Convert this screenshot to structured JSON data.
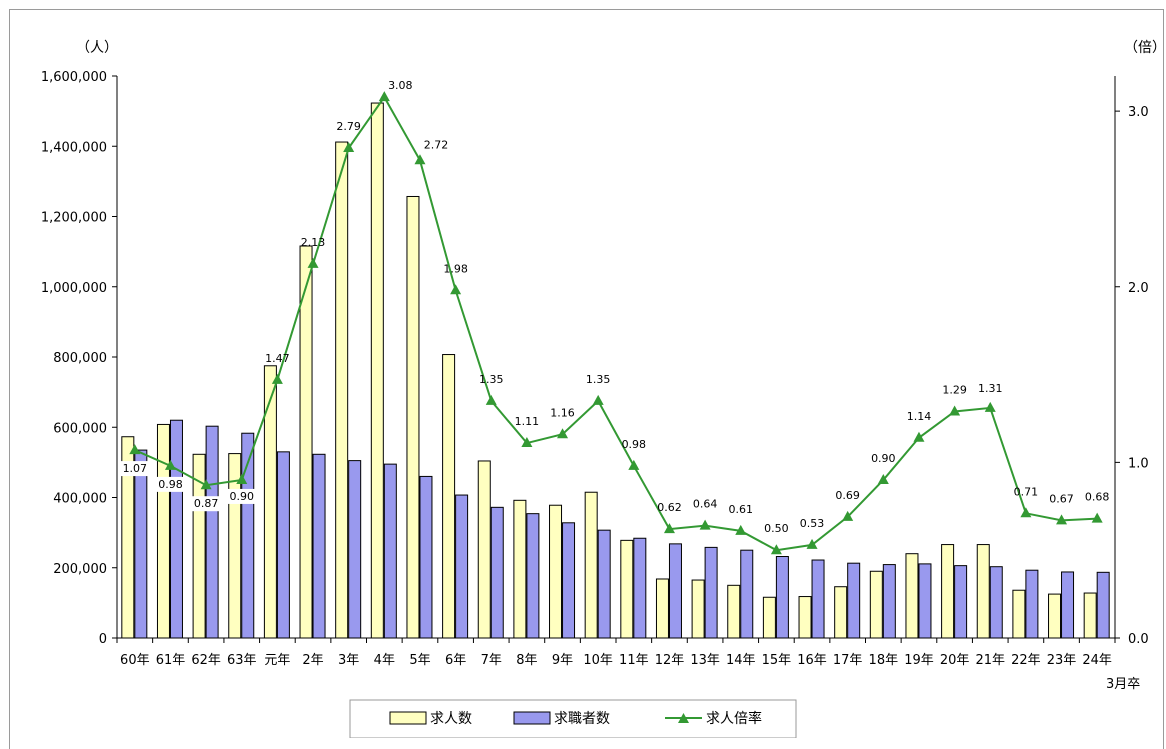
{
  "chart_data": {
    "type": "bar",
    "title": "",
    "left_axis_unit": "（人）",
    "right_axis_unit": "（倍）",
    "x_suffix": "3月卒",
    "categories": [
      "60年",
      "61年",
      "62年",
      "63年",
      "元年",
      "2年",
      "3年",
      "4年",
      "5年",
      "6年",
      "7年",
      "8年",
      "9年",
      "10年",
      "11年",
      "12年",
      "13年",
      "14年",
      "15年",
      "16年",
      "17年",
      "18年",
      "19年",
      "20年",
      "21年",
      "22年",
      "23年",
      "24年"
    ],
    "y_ticks": [
      "0",
      "200,000",
      "400,000",
      "600,000",
      "800,000",
      "1,000,000",
      "1,200,000",
      "1,400,000",
      "1,600,000"
    ],
    "y2_ticks": [
      "0.0",
      "1.0",
      "2.0",
      "3.0"
    ],
    "ylim": [
      0,
      1600000
    ],
    "y2lim": [
      0,
      3.2
    ],
    "series": [
      {
        "name": "求人数",
        "type": "bar",
        "axis": "left",
        "color": "#ffffc0",
        "values": [
          573000,
          608000,
          523000,
          525000,
          775000,
          1116000,
          1412000,
          1523000,
          1257000,
          807000,
          504000,
          392000,
          378000,
          415000,
          278000,
          168000,
          165000,
          150000,
          116000,
          118000,
          146000,
          190000,
          240000,
          266000,
          266000,
          136000,
          125000,
          128000
        ]
      },
      {
        "name": "求職者数",
        "type": "bar",
        "axis": "left",
        "color": "#9999ee",
        "values": [
          535000,
          620000,
          603000,
          583000,
          530000,
          523000,
          505000,
          495000,
          460000,
          407000,
          372000,
          354000,
          328000,
          307000,
          284000,
          268000,
          258000,
          250000,
          232000,
          222000,
          213000,
          209000,
          211000,
          206000,
          203000,
          193000,
          188000,
          187000
        ]
      },
      {
        "name": "求人倍率",
        "type": "line",
        "axis": "right",
        "color": "#339933",
        "values": [
          1.07,
          0.98,
          0.87,
          0.9,
          1.47,
          2.13,
          2.79,
          3.08,
          2.72,
          1.98,
          1.35,
          1.11,
          1.16,
          1.35,
          0.98,
          0.62,
          0.64,
          0.61,
          0.5,
          0.53,
          0.69,
          0.9,
          1.14,
          1.29,
          1.31,
          0.71,
          0.67,
          0.68
        ],
        "labels": [
          "1.07",
          "0.98",
          "0.87",
          "0.90",
          "1.47",
          "2.13",
          "2.79",
          "3.08",
          "2.72",
          "1.98",
          "1.35",
          "1.11",
          "1.16",
          "1.35",
          "0.98",
          "0.62",
          "0.64",
          "0.61",
          "0.50",
          "0.53",
          "0.69",
          "0.90",
          "1.14",
          "1.29",
          "1.31",
          "0.71",
          "0.67",
          "0.68"
        ]
      }
    ],
    "legend_position": "bottom-center",
    "grid": false
  }
}
